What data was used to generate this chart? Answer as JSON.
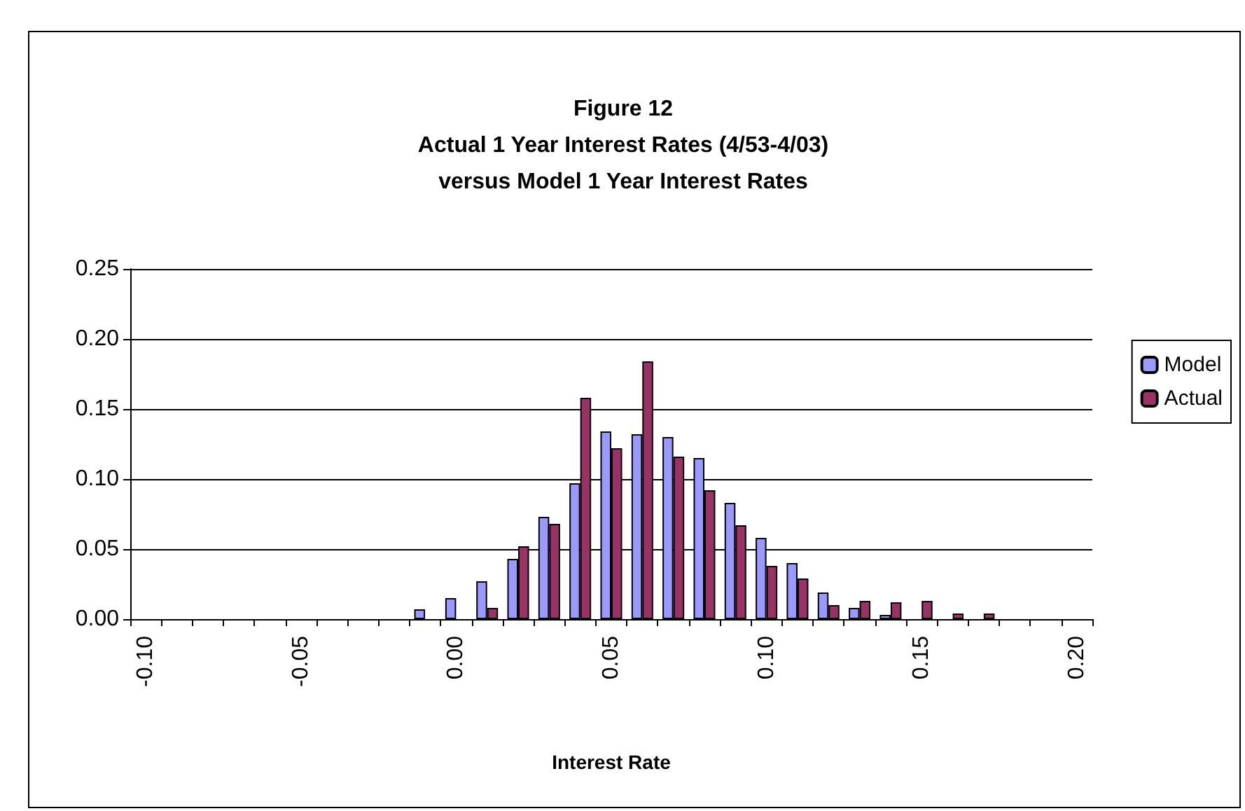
{
  "chart_data": {
    "type": "bar",
    "title": "Figure 12\nActual 1 Year Interest Rates (4/53-4/03)\nversus Model 1 Year Interest Rates",
    "xlabel": "Interest Rate",
    "categories": [
      "-0.10",
      null,
      null,
      null,
      null,
      "-0.05",
      null,
      null,
      null,
      null,
      "0.00",
      null,
      null,
      null,
      null,
      "0.05",
      null,
      null,
      null,
      null,
      "0.10",
      null,
      null,
      null,
      null,
      "0.15",
      null,
      null,
      null,
      null,
      "0.20"
    ],
    "series": [
      {
        "name": "Model",
        "color": "#9999ff",
        "values": [
          null,
          null,
          null,
          null,
          null,
          null,
          null,
          null,
          null,
          0.007,
          0.015,
          0.027,
          0.043,
          0.073,
          0.097,
          0.134,
          0.132,
          0.13,
          0.115,
          0.083,
          0.058,
          0.04,
          0.019,
          0.008,
          0.003,
          null,
          null,
          null,
          null,
          null,
          null
        ]
      },
      {
        "name": "Actual",
        "color": "#993366",
        "values": [
          null,
          null,
          null,
          null,
          null,
          null,
          null,
          null,
          null,
          null,
          null,
          0.008,
          0.052,
          0.068,
          0.158,
          0.122,
          0.184,
          0.116,
          0.092,
          0.067,
          0.038,
          0.029,
          0.01,
          0.013,
          0.012,
          0.013,
          0.004,
          0.004,
          null,
          null,
          null
        ]
      }
    ],
    "ylim": [
      0,
      0.25
    ],
    "yticks": [
      {
        "value": 0,
        "label": "0.00"
      },
      0.05,
      {
        "value": 0.1,
        "label": "0.10"
      },
      0.15,
      {
        "value": 0.2,
        "label": "0.20"
      },
      0.25
    ],
    "grid": "y",
    "legend": "right"
  }
}
